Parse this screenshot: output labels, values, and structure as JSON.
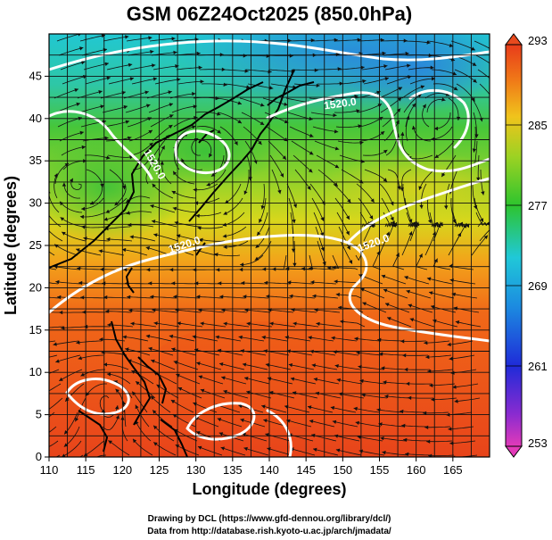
{
  "title": "GSM 06Z24Oct2025 (850.0hPa)",
  "xlabel": "Longitude (degrees)",
  "ylabel": "Latitude  (degrees)",
  "x_ticks": [
    "110",
    "115",
    "120",
    "125",
    "130",
    "135",
    "140",
    "145",
    "150",
    "155",
    "160",
    "165"
  ],
  "y_ticks": [
    "0",
    "5",
    "10",
    "15",
    "20",
    "25",
    "30",
    "35",
    "40",
    "45"
  ],
  "colorbar_ticks": [
    "253",
    "261",
    "269",
    "277",
    "285",
    "293"
  ],
  "contour_labels": [
    "1520.0",
    "1520.0",
    "1520.0",
    "1520.0"
  ],
  "credits": [
    "Drawing by DCL (https://www.gfd-dennou.org/library/dcl/)",
    "Data from http://database.rish.kyoto-u.ac.jp/arch/jmadata/"
  ],
  "map": {
    "lon_range": [
      110,
      170
    ],
    "lat_range": [
      0,
      50
    ],
    "grid": true,
    "colorbar_range": [
      253,
      293
    ],
    "colors": {
      "cold": "#2a8bd8",
      "cyan": "#22c9d6",
      "green": "#3ac23a",
      "yellow": "#c8d81e",
      "orange": "#f07a10",
      "warm": "#e8401a"
    }
  }
}
